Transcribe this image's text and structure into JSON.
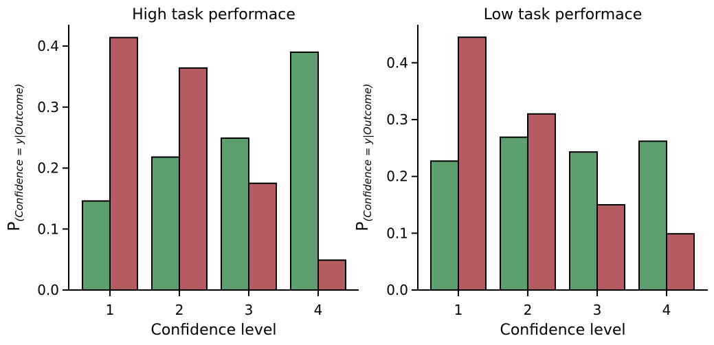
{
  "chart_data": [
    {
      "type": "bar",
      "title": "High task performace",
      "xlabel": "Confidence level",
      "ylabel_main": "P",
      "ylabel_sub": "(Confidence = y|Outcome)",
      "categories": [
        "1",
        "2",
        "3",
        "4"
      ],
      "ylim": [
        0,
        0.435
      ],
      "yticks": [
        0.0,
        0.1,
        0.2,
        0.3,
        0.4
      ],
      "ytick_labels": [
        "0.0",
        "0.1",
        "0.2",
        "0.3",
        "0.4"
      ],
      "grid": false,
      "series": [
        {
          "color": "#5e9f6f",
          "values": [
            0.146,
            0.218,
            0.249,
            0.39
          ]
        },
        {
          "color": "#b45c62",
          "values": [
            0.414,
            0.364,
            0.175,
            0.049
          ]
        }
      ]
    },
    {
      "type": "bar",
      "title": "Low task performace",
      "xlabel": "Confidence level",
      "ylabel_main": "P",
      "ylabel_sub": "(Confidence = y|Outcome)",
      "categories": [
        "1",
        "2",
        "3",
        "4"
      ],
      "ylim": [
        0,
        0.467
      ],
      "yticks": [
        0.0,
        0.1,
        0.2,
        0.3,
        0.4
      ],
      "ytick_labels": [
        "0.0",
        "0.1",
        "0.2",
        "0.3",
        "0.4"
      ],
      "grid": false,
      "series": [
        {
          "color": "#5e9f6f",
          "values": [
            0.227,
            0.269,
            0.243,
            0.262
          ]
        },
        {
          "color": "#b45c62",
          "values": [
            0.445,
            0.31,
            0.15,
            0.099
          ]
        }
      ]
    }
  ]
}
